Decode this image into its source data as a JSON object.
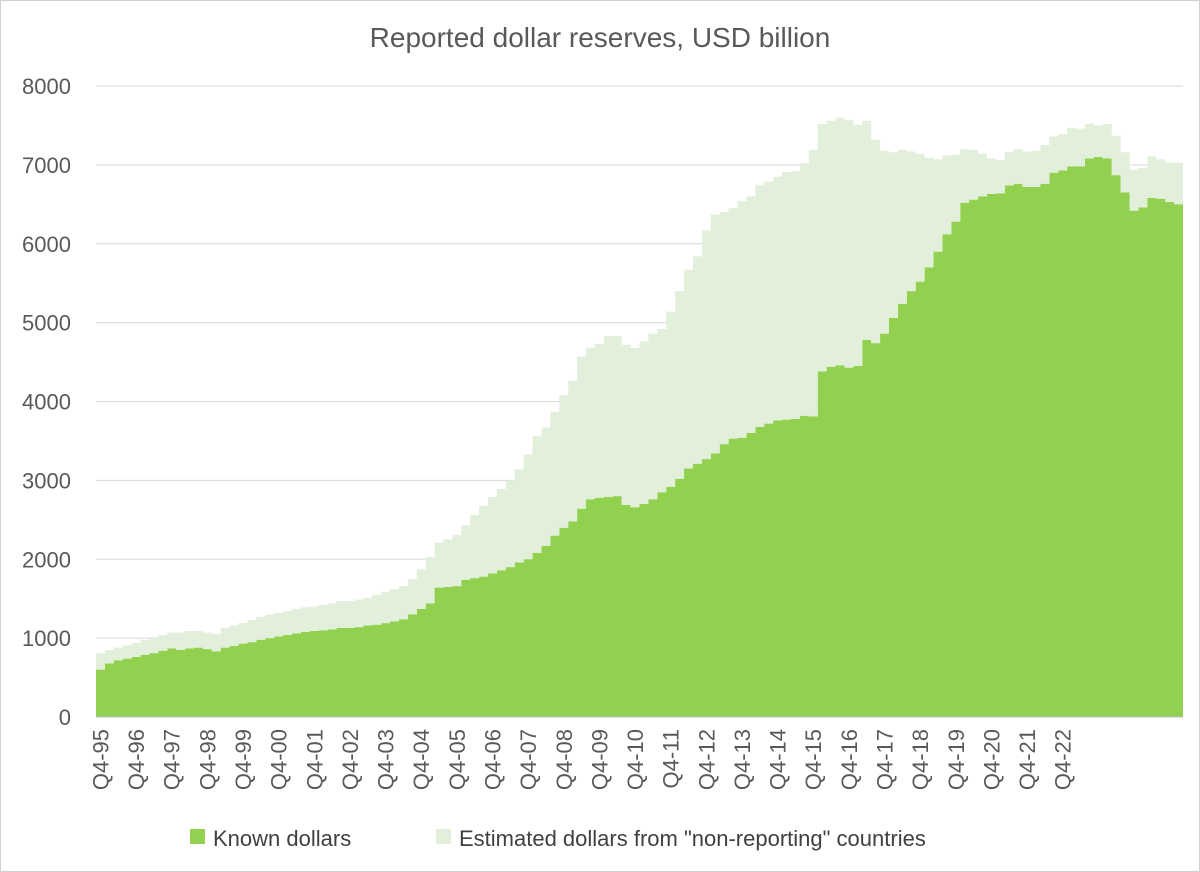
{
  "chart_data": {
    "type": "area",
    "title": "Reported dollar reserves, USD billion",
    "xlabel": "",
    "ylabel": "",
    "ylim": [
      0,
      8000
    ],
    "y_ticks": [
      0,
      1000,
      2000,
      3000,
      4000,
      5000,
      6000,
      7000,
      8000
    ],
    "x_tick_labels": [
      "Q4-95",
      "Q4-96",
      "Q4-97",
      "Q4-98",
      "Q4-99",
      "Q4-00",
      "Q4-01",
      "Q4-02",
      "Q4-03",
      "Q4-04",
      "Q4-05",
      "Q4-06",
      "Q4-07",
      "Q4-08",
      "Q4-09",
      "Q4-10",
      "Q4-11",
      "Q4-12",
      "Q4-13",
      "Q4-14",
      "Q4-15",
      "Q4-16",
      "Q4-17",
      "Q4-18",
      "Q4-19",
      "Q4-20",
      "Q4-21",
      "Q4-22"
    ],
    "x_start": "Q4-95",
    "x_end": "Q2-23",
    "stacked": true,
    "grid": true,
    "legend_position": "bottom",
    "series": [
      {
        "name": "Known dollars",
        "color": "#92d050",
        "values": [
          600,
          680,
          720,
          740,
          760,
          790,
          810,
          840,
          870,
          850,
          870,
          880,
          860,
          830,
          880,
          900,
          930,
          950,
          980,
          1000,
          1020,
          1040,
          1060,
          1080,
          1090,
          1100,
          1110,
          1130,
          1130,
          1140,
          1160,
          1170,
          1190,
          1210,
          1240,
          1300,
          1370,
          1440,
          1640,
          1650,
          1660,
          1740,
          1760,
          1780,
          1820,
          1860,
          1900,
          1960,
          2000,
          2080,
          2170,
          2300,
          2400,
          2480,
          2640,
          2760,
          2780,
          2790,
          2800,
          2690,
          2660,
          2700,
          2760,
          2850,
          2920,
          3020,
          3150,
          3210,
          3270,
          3340,
          3460,
          3530,
          3540,
          3600,
          3680,
          3720,
          3760,
          3770,
          3780,
          3820,
          3810,
          4380,
          4440,
          4460,
          4430,
          4450,
          4780,
          4740,
          4860,
          5060,
          5240,
          5400,
          5520,
          5700,
          5900,
          6120,
          6280,
          6520,
          6560,
          6600,
          6630,
          6640,
          6740,
          6760,
          6720,
          6720,
          6760,
          6900,
          6930,
          6980,
          6980,
          7080,
          7100,
          7080,
          6870,
          6650,
          6420,
          6460,
          6580,
          6570,
          6530,
          6500
        ]
      },
      {
        "name": "Estimated dollars from \"non-reporting\" countries",
        "color": "#e2efda",
        "values": [
          210,
          170,
          160,
          170,
          180,
          190,
          190,
          200,
          200,
          220,
          220,
          210,
          210,
          220,
          250,
          260,
          260,
          280,
          290,
          300,
          300,
          300,
          310,
          310,
          310,
          320,
          330,
          340,
          340,
          350,
          350,
          380,
          400,
          410,
          420,
          450,
          500,
          590,
          570,
          600,
          650,
          690,
          800,
          900,
          970,
          1030,
          1100,
          1180,
          1330,
          1480,
          1500,
          1570,
          1680,
          1780,
          1930,
          1920,
          1950,
          2040,
          2030,
          2030,
          2020,
          2060,
          2100,
          2070,
          2220,
          2380,
          2520,
          2630,
          2900,
          3030,
          2940,
          2920,
          3000,
          3000,
          3060,
          3070,
          3090,
          3140,
          3140,
          3200,
          3380,
          3140,
          3120,
          3140,
          3140,
          3060,
          2780,
          2580,
          2320,
          2100,
          1950,
          1770,
          1620,
          1390,
          1170,
          1000,
          850,
          680,
          630,
          540,
          450,
          420,
          420,
          440,
          450,
          460,
          490,
          460,
          460,
          490,
          480,
          440,
          400,
          440,
          500,
          510,
          520,
          500,
          530,
          500,
          500,
          530,
          530
        ]
      }
    ]
  },
  "legend": {
    "known_label": "Known dollars",
    "estimated_label": "Estimated dollars from \"non-reporting\" countries"
  }
}
